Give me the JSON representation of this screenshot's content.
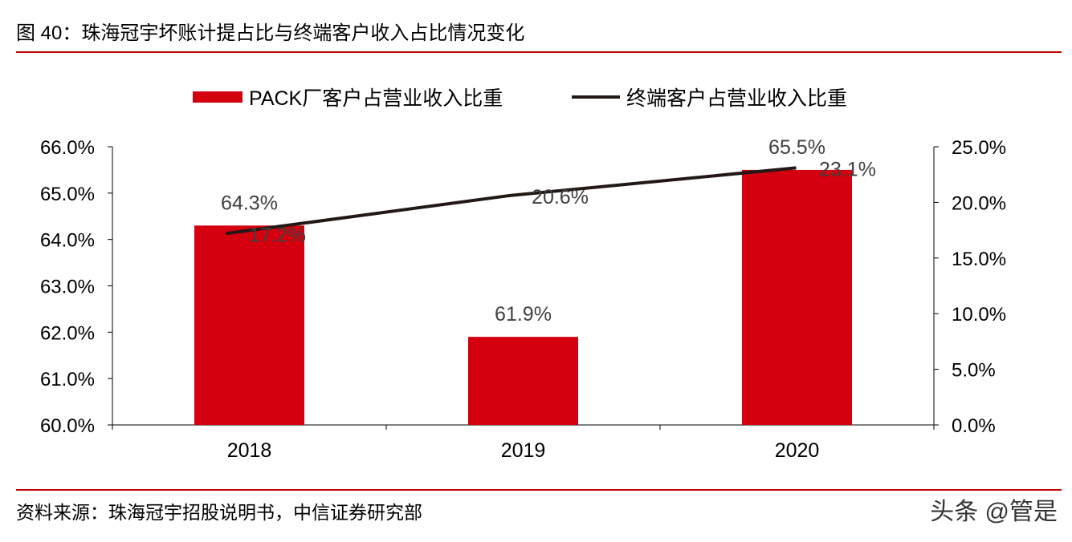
{
  "title": "图 40：珠海冠宇坏账计提占比与终端客户收入占比情况变化",
  "source": "资料来源：珠海冠宇招股说明书，中信证券研究部",
  "watermark": "头条 @管是",
  "colors": {
    "bar": "#d5000f",
    "line": "#231815",
    "rule": "#c00000"
  },
  "chart_data": {
    "type": "bar",
    "categories": [
      "2018",
      "2019",
      "2020"
    ],
    "series": [
      {
        "name": "PACK厂客户占营业收入比重",
        "type": "bar",
        "axis": "left",
        "values": [
          64.3,
          61.9,
          65.5
        ],
        "labels": [
          "64.3%",
          "61.9%",
          "65.5%"
        ]
      },
      {
        "name": "终端客户占营业收入比重",
        "type": "line",
        "axis": "right",
        "values": [
          17.2,
          20.6,
          23.1
        ],
        "labels": [
          "17.2%",
          "20.6%",
          "23.1%"
        ]
      }
    ],
    "y_left": {
      "min": 60,
      "max": 66,
      "step": 1,
      "ticks": [
        "60.0%",
        "61.0%",
        "62.0%",
        "63.0%",
        "64.0%",
        "65.0%",
        "66.0%"
      ]
    },
    "y_right": {
      "min": 0,
      "max": 25,
      "step": 5,
      "ticks": [
        "0.0%",
        "5.0%",
        "10.0%",
        "15.0%",
        "20.0%",
        "25.0%"
      ]
    },
    "legend": "top-center",
    "grid": false
  }
}
